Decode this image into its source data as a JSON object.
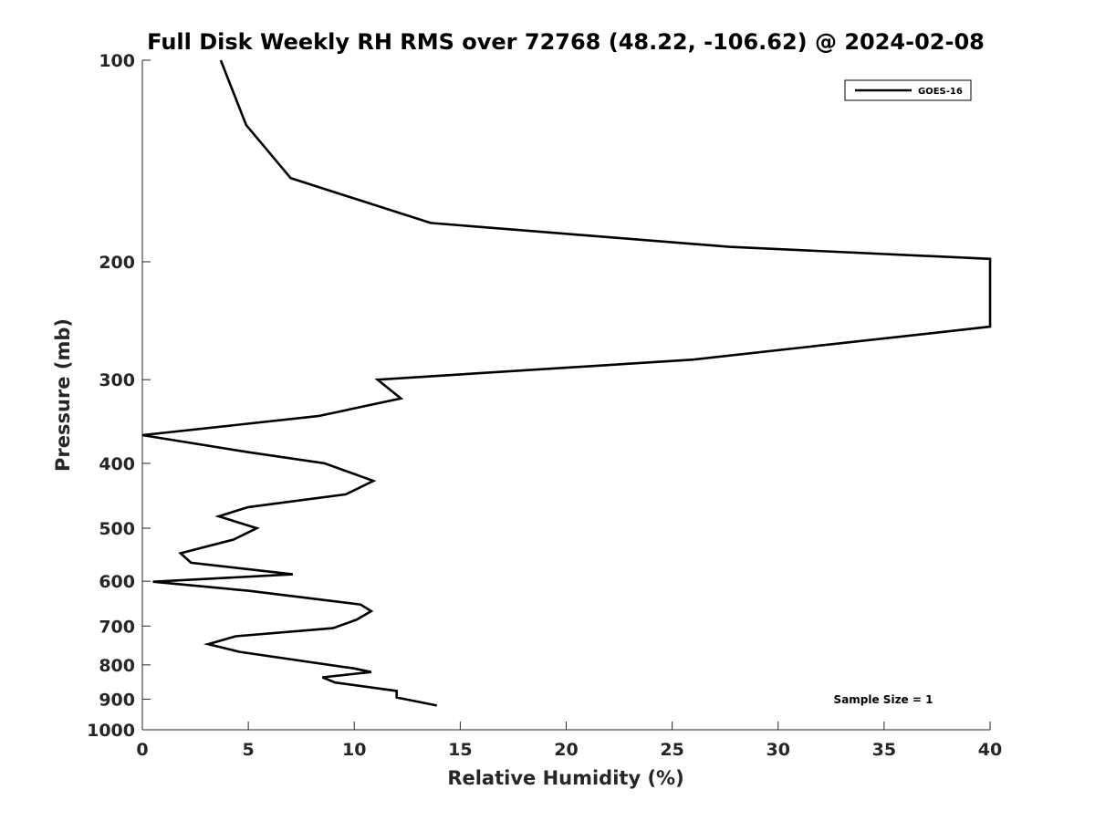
{
  "chart_data": {
    "type": "line",
    "title": "Full Disk Weekly RH RMS over 72768 (48.22, -106.62) @ 2024-02-08",
    "xlabel": "Relative Humidity (%)",
    "ylabel": "Pressure (mb)",
    "xlim": [
      0,
      40
    ],
    "ylim": [
      100,
      1000
    ],
    "y_scale": "log",
    "y_reversed": true,
    "x_ticks": [
      "0",
      "5",
      "10",
      "15",
      "20",
      "25",
      "30",
      "35",
      "40"
    ],
    "y_ticks": [
      "100",
      "200",
      "300",
      "400",
      "500",
      "600",
      "700",
      "800",
      "900",
      "1000"
    ],
    "grid": false,
    "legend_position": "top-right",
    "annotation": "Sample Size = 1",
    "series": [
      {
        "name": "GOES-16",
        "color": "#000000",
        "points": [
          [
            3.7,
            100
          ],
          [
            4.9,
            125
          ],
          [
            7.0,
            150
          ],
          [
            13.6,
            175
          ],
          [
            27.7,
            190
          ],
          [
            40.0,
            198
          ],
          [
            40.0,
            250
          ],
          [
            26.0,
            280
          ],
          [
            11.1,
            300
          ],
          [
            12.2,
            320
          ],
          [
            8.3,
            340
          ],
          [
            0.0,
            363
          ],
          [
            5.0,
            385
          ],
          [
            8.6,
            400
          ],
          [
            10.9,
            425
          ],
          [
            9.6,
            445
          ],
          [
            5.0,
            465
          ],
          [
            3.6,
            480
          ],
          [
            5.4,
            500
          ],
          [
            4.3,
            520
          ],
          [
            1.8,
            545
          ],
          [
            2.3,
            563
          ],
          [
            7.1,
            586
          ],
          [
            0.5,
            601
          ],
          [
            5.0,
            620
          ],
          [
            10.3,
            650
          ],
          [
            10.8,
            665
          ],
          [
            10.1,
            685
          ],
          [
            9.0,
            705
          ],
          [
            4.4,
            725
          ],
          [
            3.1,
            745
          ],
          [
            4.6,
            765
          ],
          [
            10.0,
            810
          ],
          [
            10.8,
            820
          ],
          [
            8.5,
            835
          ],
          [
            9.1,
            850
          ],
          [
            12.0,
            875
          ],
          [
            12.0,
            895
          ],
          [
            13.9,
            920
          ]
        ]
      }
    ]
  }
}
